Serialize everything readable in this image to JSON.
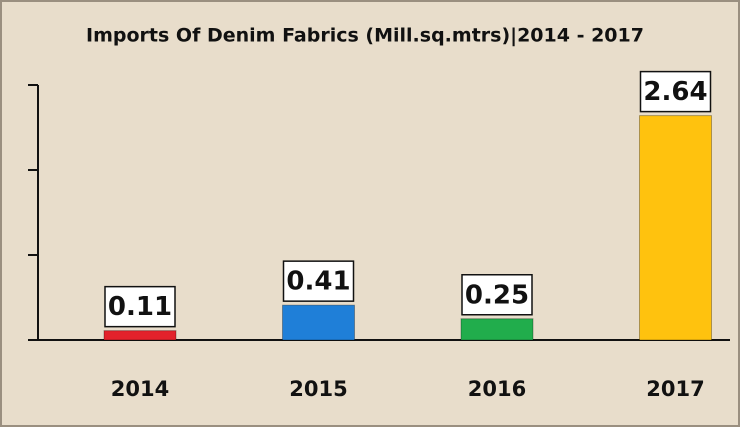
{
  "chart_data": {
    "type": "bar",
    "title": "Imports Of Denim Fabrics (Mill.sq.mtrs)|2014 - 2017",
    "categories": [
      "2014",
      "2015",
      "2016",
      "2017"
    ],
    "values": [
      0.11,
      0.41,
      0.25,
      2.64
    ],
    "colors": [
      "#e3222b",
      "#1f7fd8",
      "#21ad4c",
      "#ffc20e"
    ],
    "ylim": [
      0,
      3
    ],
    "yticks": [
      0,
      1,
      2,
      3
    ]
  }
}
